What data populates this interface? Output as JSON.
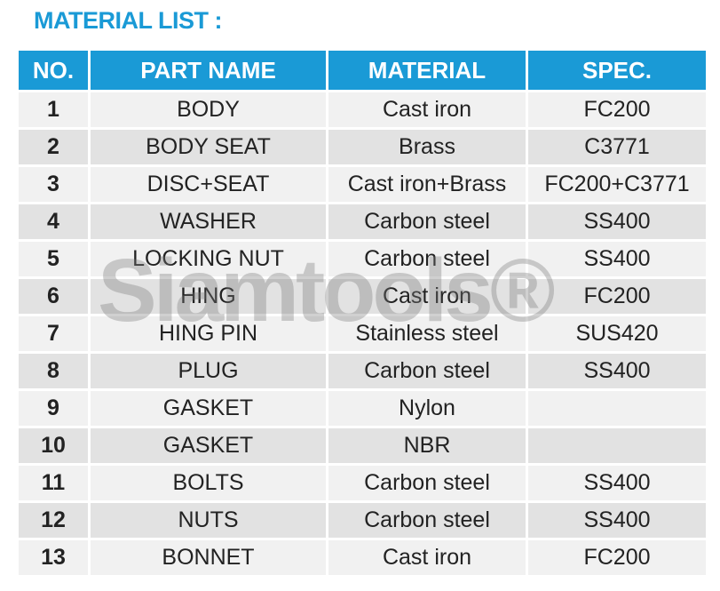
{
  "header": {
    "title": "MATERIAL LIST :"
  },
  "watermark": "Siamtools®",
  "table": {
    "columns": [
      "NO.",
      "PART NAME",
      "MATERIAL",
      "SPEC."
    ],
    "rows": [
      [
        "1",
        "BODY",
        "Cast iron",
        "FC200"
      ],
      [
        "2",
        "BODY SEAT",
        "Brass",
        "C3771"
      ],
      [
        "3",
        "DISC+SEAT",
        "Cast iron+Brass",
        "FC200+C3771"
      ],
      [
        "4",
        "WASHER",
        "Carbon steel",
        "SS400"
      ],
      [
        "5",
        "LOCKING NUT",
        "Carbon steel",
        "SS400"
      ],
      [
        "6",
        "HING",
        "Cast iron",
        "FC200"
      ],
      [
        "7",
        "HING PIN",
        "Stainless steel",
        "SUS420"
      ],
      [
        "8",
        "PLUG",
        "Carbon steel",
        "SS400"
      ],
      [
        "9",
        "GASKET",
        "Nylon"
      ],
      [
        "10",
        "GASKET",
        "NBR"
      ],
      [
        "11",
        "BOLTS",
        "Carbon steel",
        "SS400"
      ],
      [
        "12",
        "NUTS",
        "Carbon steel",
        "SS400"
      ],
      [
        "13",
        "BONNET",
        "Cast iron",
        "FC200"
      ]
    ]
  }
}
